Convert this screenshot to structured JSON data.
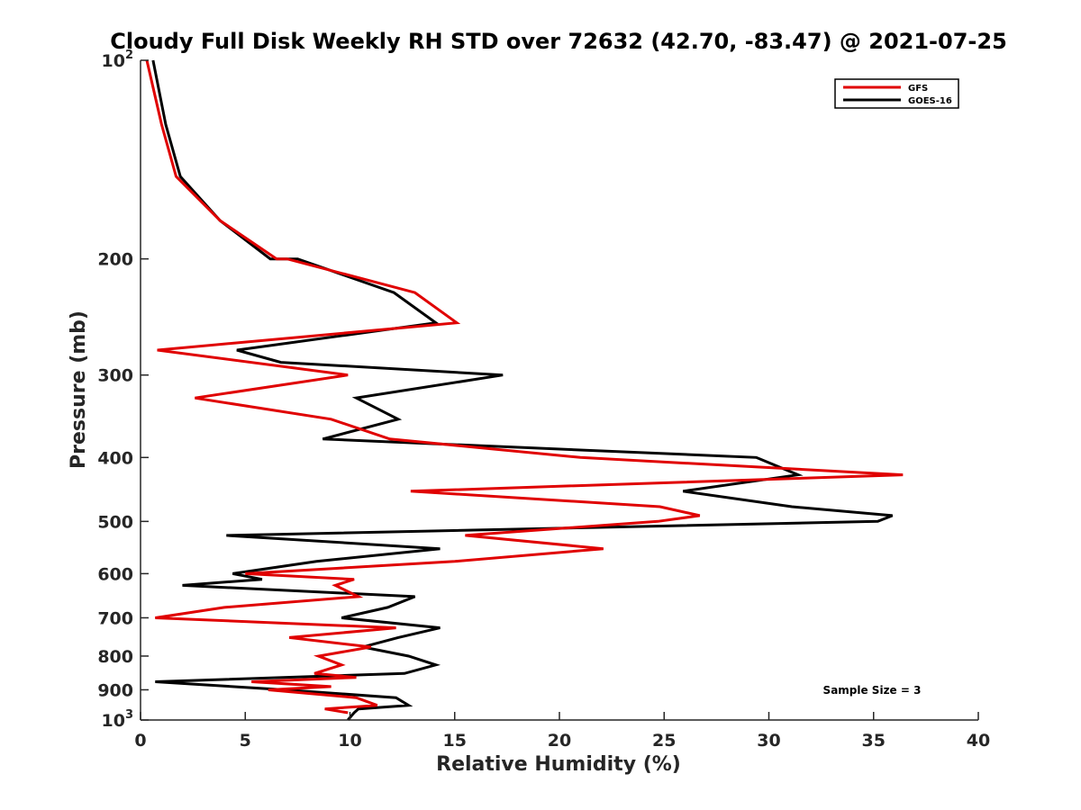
{
  "chart_data": {
    "type": "line",
    "title": "Cloudy Full Disk Weekly RH STD over 72632 (42.70, -83.47) @ 2021-07-25",
    "xlabel": "Relative Humidity (%)",
    "ylabel": "Pressure (mb)",
    "xlim": [
      0,
      40
    ],
    "ylim": [
      100,
      1000
    ],
    "y_scale": "log",
    "y_reversed": true,
    "x_ticks": [
      "0",
      "5",
      "10",
      "15",
      "20",
      "25",
      "30",
      "35",
      "40"
    ],
    "y_ticks": [
      {
        "value": 100,
        "base": "10",
        "exp": "2"
      },
      {
        "value": 200,
        "label": "200"
      },
      {
        "value": 300,
        "label": "300"
      },
      {
        "value": 400,
        "label": "400"
      },
      {
        "value": 500,
        "label": "500"
      },
      {
        "value": 600,
        "label": "600"
      },
      {
        "value": 700,
        "label": "700"
      },
      {
        "value": 800,
        "label": "800"
      },
      {
        "value": 900,
        "label": "900"
      },
      {
        "value": 1000,
        "base": "10",
        "exp": "3"
      }
    ],
    "legend_position": "top-right",
    "annotation": "Sample Size = 3",
    "series": [
      {
        "name": "GFS",
        "color": "#e00000",
        "points": [
          [
            0.3,
            100
          ],
          [
            1.0,
            125
          ],
          [
            1.7,
            150
          ],
          [
            3.8,
            175
          ],
          [
            6.5,
            200
          ],
          [
            7.0,
            200
          ],
          [
            13.1,
            225
          ],
          [
            15.1,
            250
          ],
          [
            0.8,
            275
          ],
          [
            9.9,
            300
          ],
          [
            2.6,
            325
          ],
          [
            9.1,
            350
          ],
          [
            11.9,
            375
          ],
          [
            21.0,
            400
          ],
          [
            36.4,
            425
          ],
          [
            12.9,
            450
          ],
          [
            24.8,
            475
          ],
          [
            26.7,
            490
          ],
          [
            24.7,
            500
          ],
          [
            15.5,
            525
          ],
          [
            22.1,
            550
          ],
          [
            15.0,
            575
          ],
          [
            5.0,
            600
          ],
          [
            10.2,
            612
          ],
          [
            9.3,
            625
          ],
          [
            10.4,
            650
          ],
          [
            4.0,
            675
          ],
          [
            0.7,
            700
          ],
          [
            12.2,
            725
          ],
          [
            7.1,
            750
          ],
          [
            11.0,
            775
          ],
          [
            8.5,
            800
          ],
          [
            9.6,
            825
          ],
          [
            8.3,
            850
          ],
          [
            10.3,
            862
          ],
          [
            5.3,
            875
          ],
          [
            9.1,
            890
          ],
          [
            6.1,
            900
          ],
          [
            10.3,
            925
          ],
          [
            11.3,
            950
          ],
          [
            8.8,
            962
          ],
          [
            9.9,
            975
          ]
        ]
      },
      {
        "name": "GOES-16",
        "color": "#000000",
        "points": [
          [
            0.6,
            100
          ],
          [
            1.2,
            125
          ],
          [
            1.9,
            150
          ],
          [
            3.8,
            175
          ],
          [
            6.2,
            200
          ],
          [
            7.5,
            200
          ],
          [
            12.1,
            225
          ],
          [
            14.1,
            250
          ],
          [
            4.6,
            275
          ],
          [
            6.7,
            287
          ],
          [
            17.3,
            300
          ],
          [
            10.3,
            325
          ],
          [
            12.3,
            350
          ],
          [
            8.7,
            375
          ],
          [
            29.4,
            400
          ],
          [
            31.4,
            425
          ],
          [
            25.9,
            450
          ],
          [
            31.1,
            475
          ],
          [
            35.9,
            490
          ],
          [
            35.2,
            500
          ],
          [
            4.1,
            525
          ],
          [
            14.3,
            550
          ],
          [
            8.4,
            575
          ],
          [
            4.4,
            600
          ],
          [
            5.8,
            612
          ],
          [
            2.0,
            625
          ],
          [
            13.1,
            650
          ],
          [
            11.8,
            675
          ],
          [
            9.6,
            700
          ],
          [
            14.3,
            725
          ],
          [
            12.3,
            750
          ],
          [
            10.6,
            775
          ],
          [
            12.8,
            800
          ],
          [
            14.1,
            825
          ],
          [
            12.6,
            850
          ],
          [
            0.7,
            875
          ],
          [
            6.9,
            900
          ],
          [
            12.2,
            925
          ],
          [
            12.8,
            950
          ],
          [
            10.4,
            962
          ],
          [
            10.2,
            975
          ],
          [
            9.9,
            1000
          ]
        ]
      }
    ]
  }
}
